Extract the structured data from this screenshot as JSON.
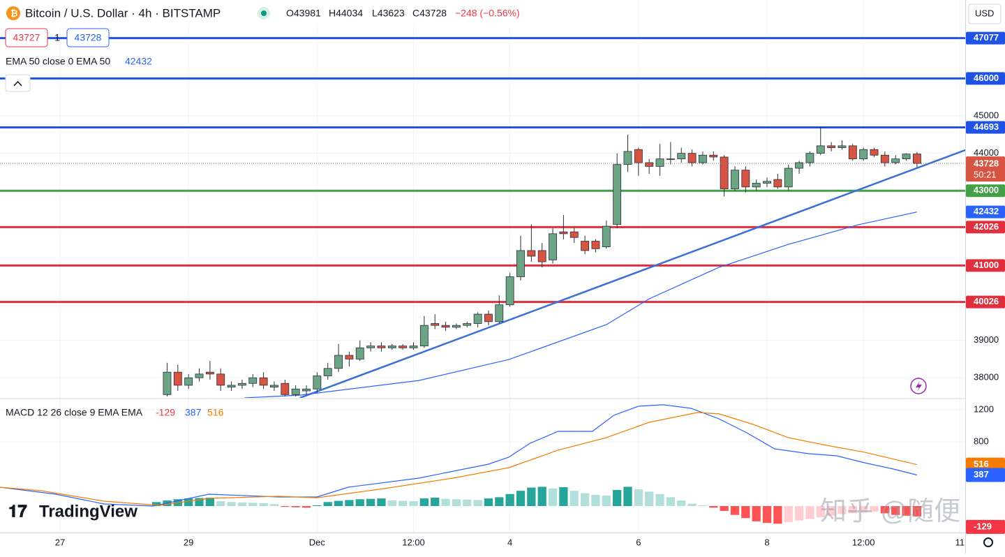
{
  "header": {
    "title": "Bitcoin / U.S. Dollar · 4h · BITSTAMP",
    "ohlc": [
      "O43981",
      "H44034",
      "L43623",
      "C43728",
      "−248 (−0.56%)"
    ],
    "currency": "USD",
    "countdown": "50:21",
    "logo": "TradingView",
    "watermark": "知乎 @随便"
  },
  "quote": {
    "bid": 43727,
    "spread": 1,
    "ask": 43728
  },
  "chart_data": {
    "type": "candlestick",
    "xlim": [
      -15.6,
      74.5
    ],
    "xticks": [
      {
        "value": -10,
        "label": "27"
      },
      {
        "value": 2,
        "label": "29"
      },
      {
        "value": 14,
        "label": "Dec"
      },
      {
        "value": 23,
        "label": "12:00"
      },
      {
        "value": 32,
        "label": "4"
      },
      {
        "value": 44,
        "label": "6"
      },
      {
        "value": 56,
        "label": "8"
      },
      {
        "value": 65,
        "label": "12:00"
      },
      {
        "value": 74,
        "label": "11"
      }
    ],
    "ylim": [
      37463,
      48097
    ],
    "yticks": [
      38000,
      39000,
      44000,
      45000
    ],
    "grid": true,
    "up_color": "#6ba583",
    "down_color": "#d75442",
    "open": [
      37550,
      38150,
      37800,
      38000,
      38150,
      38100,
      37750,
      37800,
      37850,
      38000,
      37750,
      37850,
      37550,
      37650,
      37700,
      38050,
      38250,
      38600,
      38500,
      38800,
      38850,
      38800,
      38850,
      38800,
      38850,
      39450,
      39400,
      39350,
      39400,
      39450,
      39700,
      39500,
      39950,
      40700,
      41400,
      41400,
      41150,
      41900,
      41900,
      41650,
      41650,
      41500,
      42100,
      43700,
      44100,
      43750,
      43650,
      43850,
      43850,
      44000,
      43750,
      43950,
      43900,
      43050,
      43550,
      43100,
      43200,
      43300,
      43100,
      43600,
      43750,
      44000,
      44200,
      44150,
      44200,
      43850,
      44100,
      43950,
      43750,
      43850,
      43981
    ],
    "high": [
      38400,
      38350,
      38100,
      38250,
      38450,
      38250,
      37900,
      37950,
      38100,
      38150,
      37900,
      37950,
      37800,
      37800,
      38150,
      38400,
      38900,
      38700,
      39000,
      38950,
      38950,
      38900,
      38900,
      38950,
      39650,
      39700,
      39500,
      39450,
      39500,
      39750,
      39800,
      40200,
      40800,
      41800,
      42100,
      41600,
      42000,
      42350,
      42000,
      41800,
      41700,
      42200,
      44000,
      44500,
      44150,
      43850,
      44250,
      44300,
      44150,
      44100,
      44050,
      44050,
      43950,
      43650,
      43650,
      43300,
      43350,
      43450,
      43700,
      43800,
      44050,
      44700,
      44300,
      44350,
      44250,
      44150,
      44150,
      44050,
      43950,
      44000,
      44034
    ],
    "low": [
      37500,
      37650,
      37700,
      37900,
      37950,
      37650,
      37650,
      37700,
      37750,
      37700,
      37650,
      37500,
      37500,
      37550,
      37600,
      37950,
      38150,
      38300,
      38450,
      38700,
      38700,
      38750,
      38750,
      38750,
      38800,
      39300,
      39250,
      39300,
      39350,
      39350,
      39400,
      39450,
      39900,
      40600,
      41100,
      40950,
      41050,
      41700,
      41600,
      41300,
      41350,
      41450,
      42000,
      43500,
      43400,
      43450,
      43400,
      43700,
      43750,
      43650,
      43700,
      43800,
      42850,
      43000,
      42950,
      43000,
      43100,
      43050,
      43000,
      43450,
      43650,
      43950,
      44050,
      44100,
      43800,
      43800,
      43900,
      43650,
      43700,
      43800,
      43623
    ],
    "close": [
      38150,
      37800,
      38000,
      38100,
      38100,
      37800,
      37800,
      37850,
      38000,
      37800,
      37800,
      37550,
      37700,
      37700,
      38050,
      38250,
      38600,
      38500,
      38800,
      38850,
      38800,
      38850,
      38800,
      38850,
      39400,
      39400,
      39350,
      39400,
      39450,
      39700,
      39500,
      39950,
      40700,
      41400,
      41250,
      41100,
      41850,
      41850,
      41750,
      41400,
      41450,
      42050,
      43700,
      44050,
      43750,
      43650,
      43850,
      43850,
      44000,
      43750,
      43950,
      43900,
      43050,
      43550,
      43100,
      43200,
      43250,
      43100,
      43600,
      43750,
      44000,
      44200,
      44150,
      44200,
      43850,
      44100,
      43950,
      43750,
      43850,
      43980,
      43728
    ],
    "levels": [
      {
        "value": 47077,
        "color": "#1e53e5"
      },
      {
        "value": 46000,
        "color": "#1e53e5"
      },
      {
        "value": 44693,
        "color": "#1e53e5"
      },
      {
        "value": 43000,
        "color": "#43a047"
      },
      {
        "value": 42026,
        "color": "#e0303e"
      },
      {
        "value": 41000,
        "color": "#e0303e"
      },
      {
        "value": 40026,
        "color": "#e0303e"
      }
    ],
    "trendline": {
      "color": "#3a6fd8",
      "x": [
        12.4,
        74.5
      ],
      "values": [
        37463,
        44086
      ]
    },
    "ema": {
      "name": "EMA 50 close 0 EMA 50",
      "color": "#2962ff",
      "x": [
        7.2,
        12.4,
        23.5,
        31.9,
        41.0,
        45.0,
        51.5,
        58.0,
        64.5,
        70.0
      ],
      "values": [
        37463,
        37536,
        37928,
        38487,
        39420,
        40110,
        40950,
        41566,
        42088,
        42432
      ]
    },
    "macd_pane": {
      "name": "MACD 12 26 close 9 EMA EMA",
      "ylim": [
        -330,
        1330
      ],
      "yticks": [
        800,
        1200
      ],
      "histogram": {
        "color": "#f23645",
        "colors": [
          "#26a69a",
          "#b2dfdb",
          "#ff5252",
          "#ffcdd2"
        ],
        "x": [
          -1,
          0,
          1,
          2,
          3,
          4,
          5,
          6,
          7,
          8,
          9,
          10,
          11,
          12,
          13,
          14,
          15,
          16,
          17,
          18,
          19,
          20,
          21,
          22,
          23,
          24,
          25,
          26,
          27,
          28,
          29,
          30,
          31,
          32,
          33,
          34,
          35,
          36,
          37,
          38,
          39,
          40,
          41,
          42,
          43,
          44,
          45,
          46,
          47,
          48,
          49,
          50,
          51,
          52,
          53,
          54,
          55,
          56,
          57,
          58,
          59,
          60,
          61,
          62,
          63,
          64,
          65,
          66,
          67,
          68,
          69,
          70
        ],
        "values": [
          50,
          70,
          85,
          95,
          100,
          105,
          60,
          50,
          45,
          40,
          35,
          25,
          -10,
          -15,
          -20,
          10,
          50,
          65,
          75,
          85,
          90,
          95,
          70,
          65,
          60,
          95,
          105,
          90,
          85,
          80,
          75,
          95,
          110,
          150,
          190,
          230,
          240,
          220,
          235,
          190,
          160,
          140,
          130,
          200,
          240,
          210,
          180,
          150,
          110,
          70,
          30,
          10,
          -20,
          -60,
          -110,
          -150,
          -190,
          -210,
          -220,
          -200,
          -180,
          -160,
          -140,
          -120,
          -100,
          -90,
          -80,
          -70,
          -90,
          -110,
          -120,
          -129
        ]
      },
      "macd": {
        "color": "#2962ff",
        "x": [
          -15.6,
          -10.4,
          -5.9,
          -1.3,
          3.9,
          10.4,
          14.0,
          16.9,
          23.5,
          30.0,
          31.9,
          33.9,
          36.5,
          39.7,
          41.7,
          44.0,
          46.3,
          48.9,
          51.5,
          54.1,
          56.7,
          59.9,
          62.5,
          65.1,
          67.8,
          70.0
        ],
        "values": [
          235,
          148,
          26,
          0,
          148,
          113,
          113,
          235,
          348,
          522,
          609,
          783,
          930,
          930,
          1130,
          1243,
          1261,
          1217,
          1087,
          913,
          713,
          652,
          626,
          539,
          461,
          387
        ]
      },
      "signal": {
        "color": "#f57c00",
        "x": [
          -15.6,
          -11.7,
          -5.9,
          -0.7,
          3.9,
          10.4,
          14.0,
          20.2,
          26.7,
          31.9,
          36.5,
          41.0,
          45.0,
          49.5,
          51.5,
          54.7,
          58.0,
          61.2,
          65.1,
          70.0
        ],
        "values": [
          235,
          191,
          61,
          9,
          96,
          122,
          104,
          217,
          348,
          478,
          696,
          852,
          1043,
          1165,
          1148,
          1017,
          852,
          765,
          670,
          516
        ]
      }
    }
  }
}
